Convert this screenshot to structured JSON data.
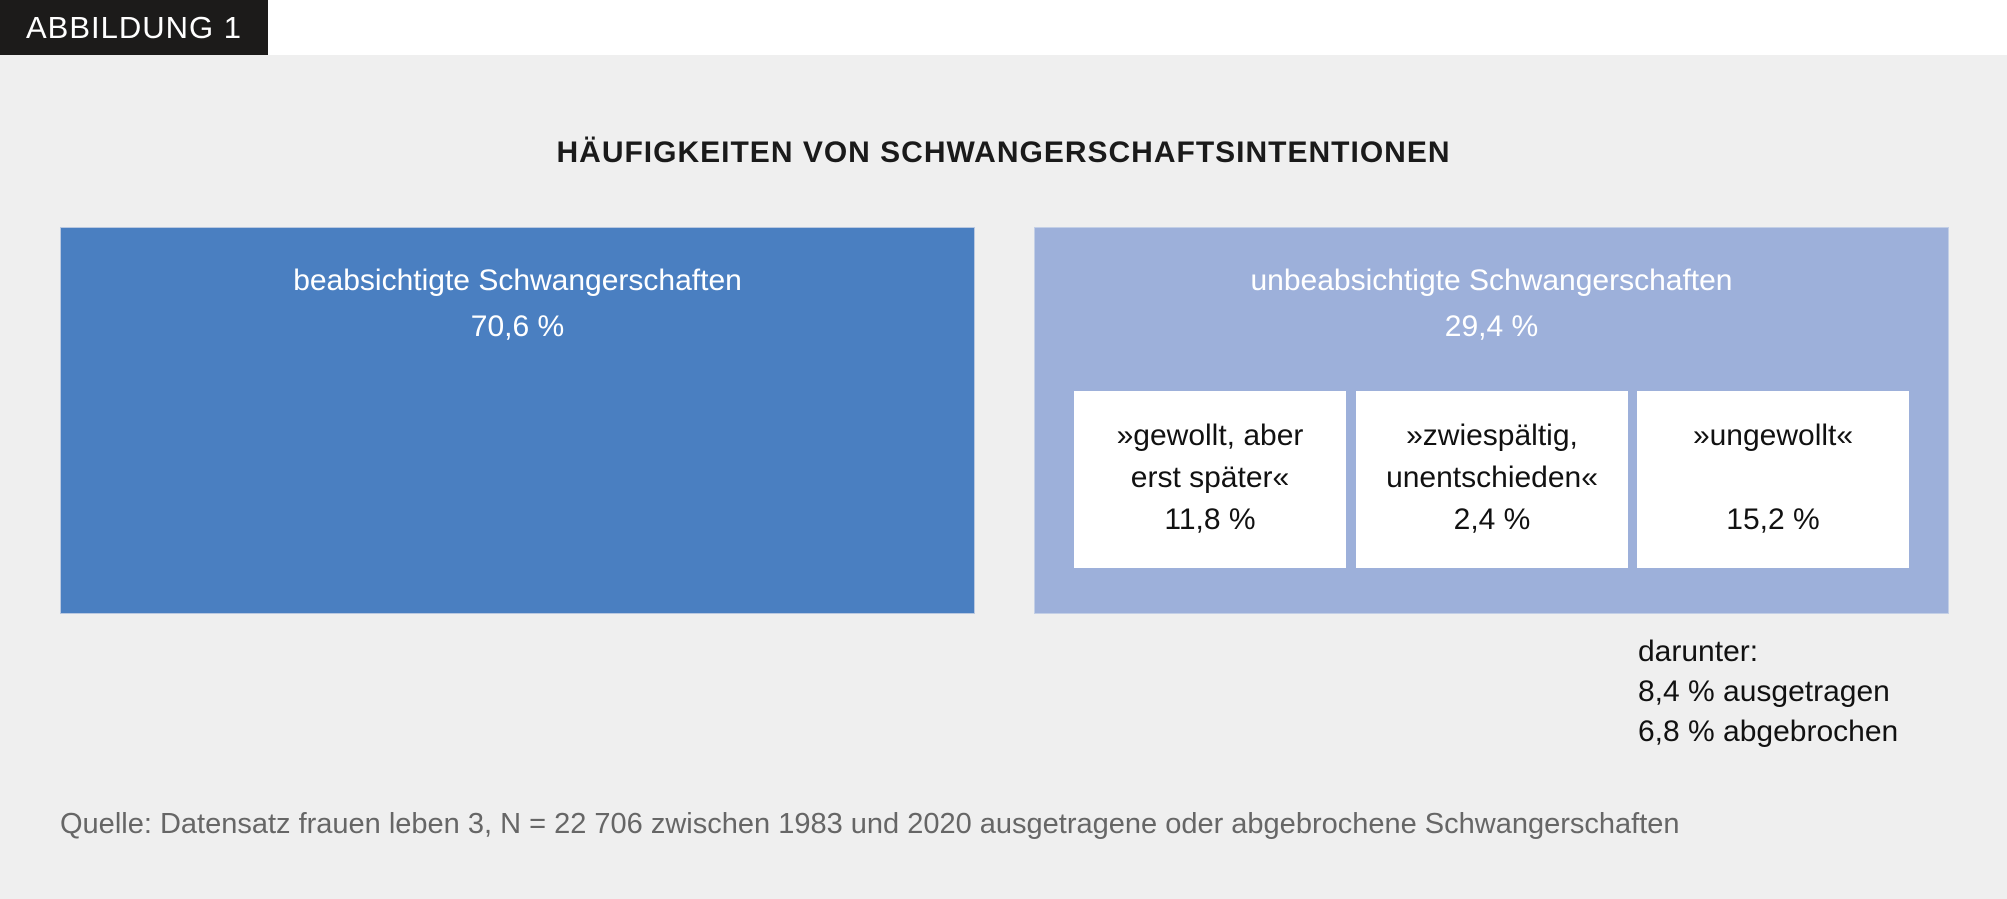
{
  "figure_label": "ABBILDUNG 1",
  "title": "HÄUFIGKEITEN VON SCHWANGERSCHAFTSINTENTIONEN",
  "colors": {
    "intended": "#4a7fc1",
    "unintended": "#9db0da",
    "background": "#efefef"
  },
  "intended": {
    "label": "beabsichtigte Schwangerschaften",
    "value": "70,6 %"
  },
  "unintended": {
    "label": "unbeabsichtigte Schwangerschaften",
    "value": "29,4 %",
    "categories": [
      {
        "line1": "»gewollt, aber",
        "line2": "erst später«",
        "value": "11,8 %"
      },
      {
        "line1": "»zwiespältig,",
        "line2": "unentschieden«",
        "value": "2,4 %"
      },
      {
        "line1": "»ungewollt«",
        "line2": "",
        "value": "15,2 %"
      }
    ]
  },
  "note": {
    "heading": "darunter:",
    "line1": "8,4 % ausgetragen",
    "line2": "6,8 % abgebrochen"
  },
  "source": "Quelle: Datensatz frauen leben 3, N = 22 706 zwischen 1983 und 2020 ausgetragene oder abgebrochene Schwangerschaften"
}
